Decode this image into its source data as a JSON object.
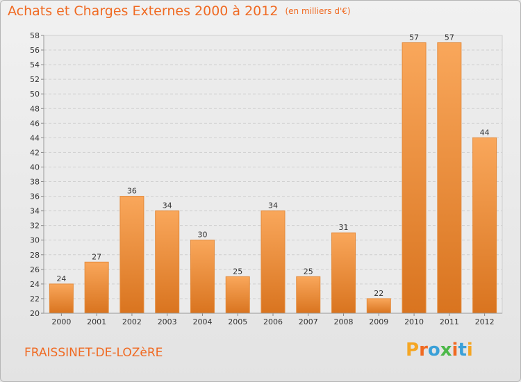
{
  "header": {
    "title": "Achats et Charges Externes 2000 à 2012",
    "unit": "(en milliers d'€)"
  },
  "footer": {
    "commune": "FRAISSINET-DE-LOZèRE",
    "logo": "Proxiti"
  },
  "colors": {
    "accent": "#f06a22",
    "bar_light": "#f9a75b",
    "bar_dark": "#d9741f",
    "logo_letters": [
      "#f5a623",
      "#f06a22",
      "#3aa0d8",
      "#4cb848",
      "#f06a22",
      "#3aa0d8",
      "#f5a623"
    ]
  },
  "chart_data": {
    "type": "bar",
    "title": "Achats et Charges Externes 2000 à 2012",
    "subtitle": "(en milliers d'€)",
    "categories": [
      "2000",
      "2001",
      "2002",
      "2003",
      "2004",
      "2005",
      "2006",
      "2007",
      "2008",
      "2009",
      "2010",
      "2011",
      "2012"
    ],
    "values": [
      24,
      27,
      36,
      34,
      30,
      25,
      34,
      25,
      31,
      22,
      57,
      57,
      44
    ],
    "ylim": [
      20,
      58
    ],
    "yticks": [
      20,
      22,
      24,
      26,
      28,
      30,
      32,
      34,
      36,
      38,
      40,
      42,
      44,
      46,
      48,
      50,
      52,
      54,
      56,
      58
    ],
    "grid": true,
    "legend": "none"
  }
}
